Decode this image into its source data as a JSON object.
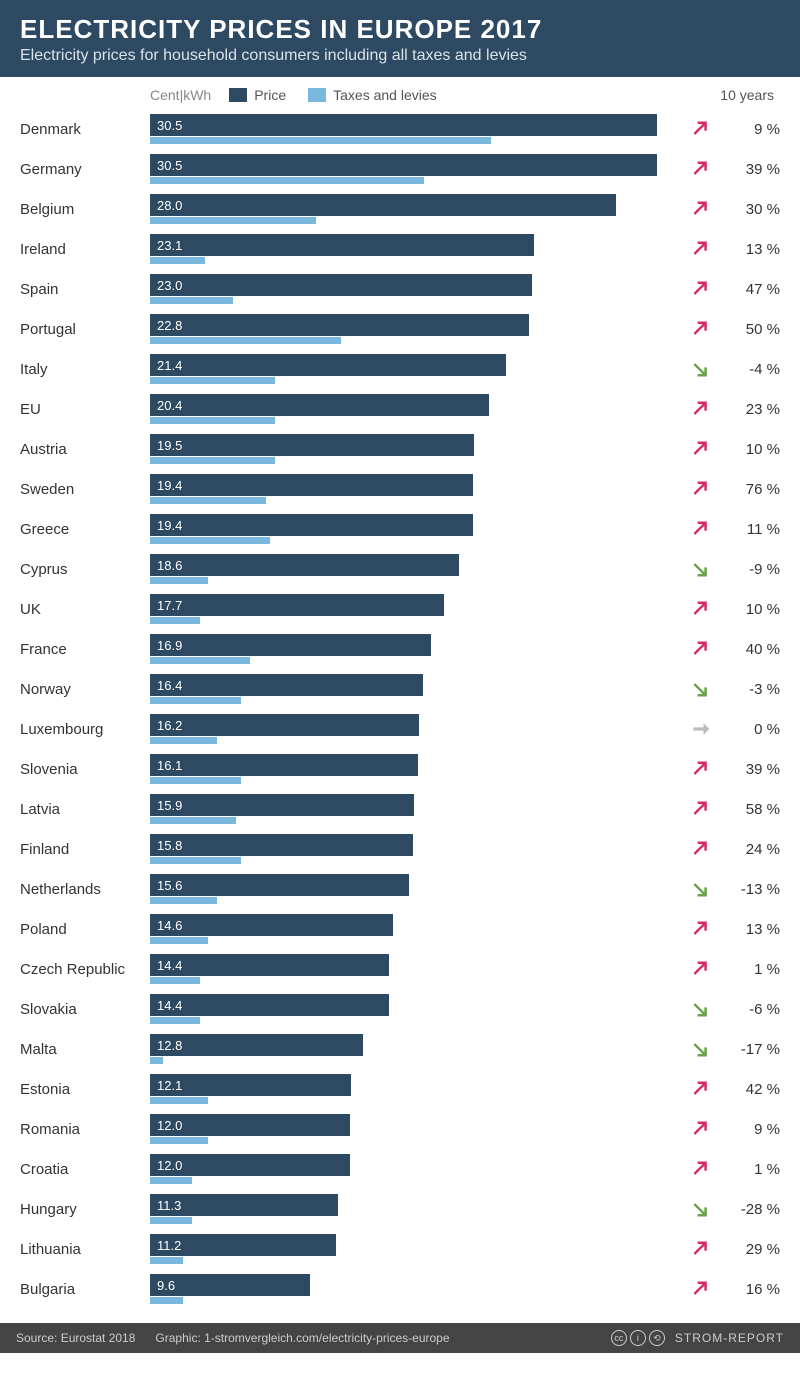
{
  "header": {
    "title": "ELECTRICITY PRICES IN EUROPE 2017",
    "subtitle": "Electricity prices for household consumers including all taxes and levies"
  },
  "legend": {
    "unit": "Cent|kWh",
    "price_label": "Price",
    "tax_label": "Taxes and levies",
    "right_label": "10 years"
  },
  "chart": {
    "type": "bar",
    "max_value": 32,
    "price_color": "#2e4a63",
    "tax_color": "#7ab9dd",
    "up_color": "#d72a5d",
    "down_color": "#6aa24a",
    "neutral_color": "#bbbbbb",
    "background_color": "#ffffff",
    "rows": [
      {
        "country": "Denmark",
        "price": 30.5,
        "tax": 20.5,
        "trend": "up",
        "pct": "9 %"
      },
      {
        "country": "Germany",
        "price": 30.5,
        "tax": 16.5,
        "trend": "up",
        "pct": "39 %"
      },
      {
        "country": "Belgium",
        "price": 28.0,
        "tax": 10.0,
        "trend": "up",
        "pct": "30 %"
      },
      {
        "country": "Ireland",
        "price": 23.1,
        "tax": 3.3,
        "trend": "up",
        "pct": "13 %"
      },
      {
        "country": "Spain",
        "price": 23.0,
        "tax": 5.0,
        "trend": "up",
        "pct": "47 %"
      },
      {
        "country": "Portugal",
        "price": 22.8,
        "tax": 11.5,
        "trend": "up",
        "pct": "50 %"
      },
      {
        "country": "Italy",
        "price": 21.4,
        "tax": 7.5,
        "trend": "down",
        "pct": "-4 %"
      },
      {
        "country": "EU",
        "price": 20.4,
        "tax": 7.5,
        "trend": "up",
        "pct": "23 %"
      },
      {
        "country": "Austria",
        "price": 19.5,
        "tax": 7.5,
        "trend": "up",
        "pct": "10 %"
      },
      {
        "country": "Sweden",
        "price": 19.4,
        "tax": 7.0,
        "trend": "up",
        "pct": "76 %"
      },
      {
        "country": "Greece",
        "price": 19.4,
        "tax": 7.2,
        "trend": "up",
        "pct": "11 %"
      },
      {
        "country": "Cyprus",
        "price": 18.6,
        "tax": 3.5,
        "trend": "down",
        "pct": "-9 %"
      },
      {
        "country": "UK",
        "price": 17.7,
        "tax": 3.0,
        "trend": "up",
        "pct": "10 %"
      },
      {
        "country": "France",
        "price": 16.9,
        "tax": 6.0,
        "trend": "up",
        "pct": "40 %"
      },
      {
        "country": "Norway",
        "price": 16.4,
        "tax": 5.5,
        "trend": "down",
        "pct": "-3 %"
      },
      {
        "country": "Luxembourg",
        "price": 16.2,
        "tax": 4.0,
        "trend": "neutral",
        "pct": "0 %"
      },
      {
        "country": "Slovenia",
        "price": 16.1,
        "tax": 5.5,
        "trend": "up",
        "pct": "39 %"
      },
      {
        "country": "Latvia",
        "price": 15.9,
        "tax": 5.2,
        "trend": "up",
        "pct": "58 %"
      },
      {
        "country": "Finland",
        "price": 15.8,
        "tax": 5.5,
        "trend": "up",
        "pct": "24 %"
      },
      {
        "country": "Netherlands",
        "price": 15.6,
        "tax": 4.0,
        "trend": "down",
        "pct": "-13 %"
      },
      {
        "country": "Poland",
        "price": 14.6,
        "tax": 3.5,
        "trend": "up",
        "pct": "13 %"
      },
      {
        "country": "Czech Republic",
        "price": 14.4,
        "tax": 3.0,
        "trend": "up",
        "pct": "1 %"
      },
      {
        "country": "Slovakia",
        "price": 14.4,
        "tax": 3.0,
        "trend": "down",
        "pct": "-6 %"
      },
      {
        "country": "Malta",
        "price": 12.8,
        "tax": 0.8,
        "trend": "down",
        "pct": "-17 %"
      },
      {
        "country": "Estonia",
        "price": 12.1,
        "tax": 3.5,
        "trend": "up",
        "pct": "42 %"
      },
      {
        "country": "Romania",
        "price": 12.0,
        "tax": 3.5,
        "trend": "up",
        "pct": "9 %"
      },
      {
        "country": "Croatia",
        "price": 12.0,
        "tax": 2.5,
        "trend": "up",
        "pct": "1 %"
      },
      {
        "country": "Hungary",
        "price": 11.3,
        "tax": 2.5,
        "trend": "down",
        "pct": "-28 %"
      },
      {
        "country": "Lithuania",
        "price": 11.2,
        "tax": 2.0,
        "trend": "up",
        "pct": "29 %"
      },
      {
        "country": "Bulgaria",
        "price": 9.6,
        "tax": 2.0,
        "trend": "up",
        "pct": "16 %"
      }
    ]
  },
  "footer": {
    "source": "Source: Eurostat 2018",
    "graphic": "Graphic: 1-stromvergleich.com/electricity-prices-europe",
    "brand": "STROM-REPORT"
  }
}
